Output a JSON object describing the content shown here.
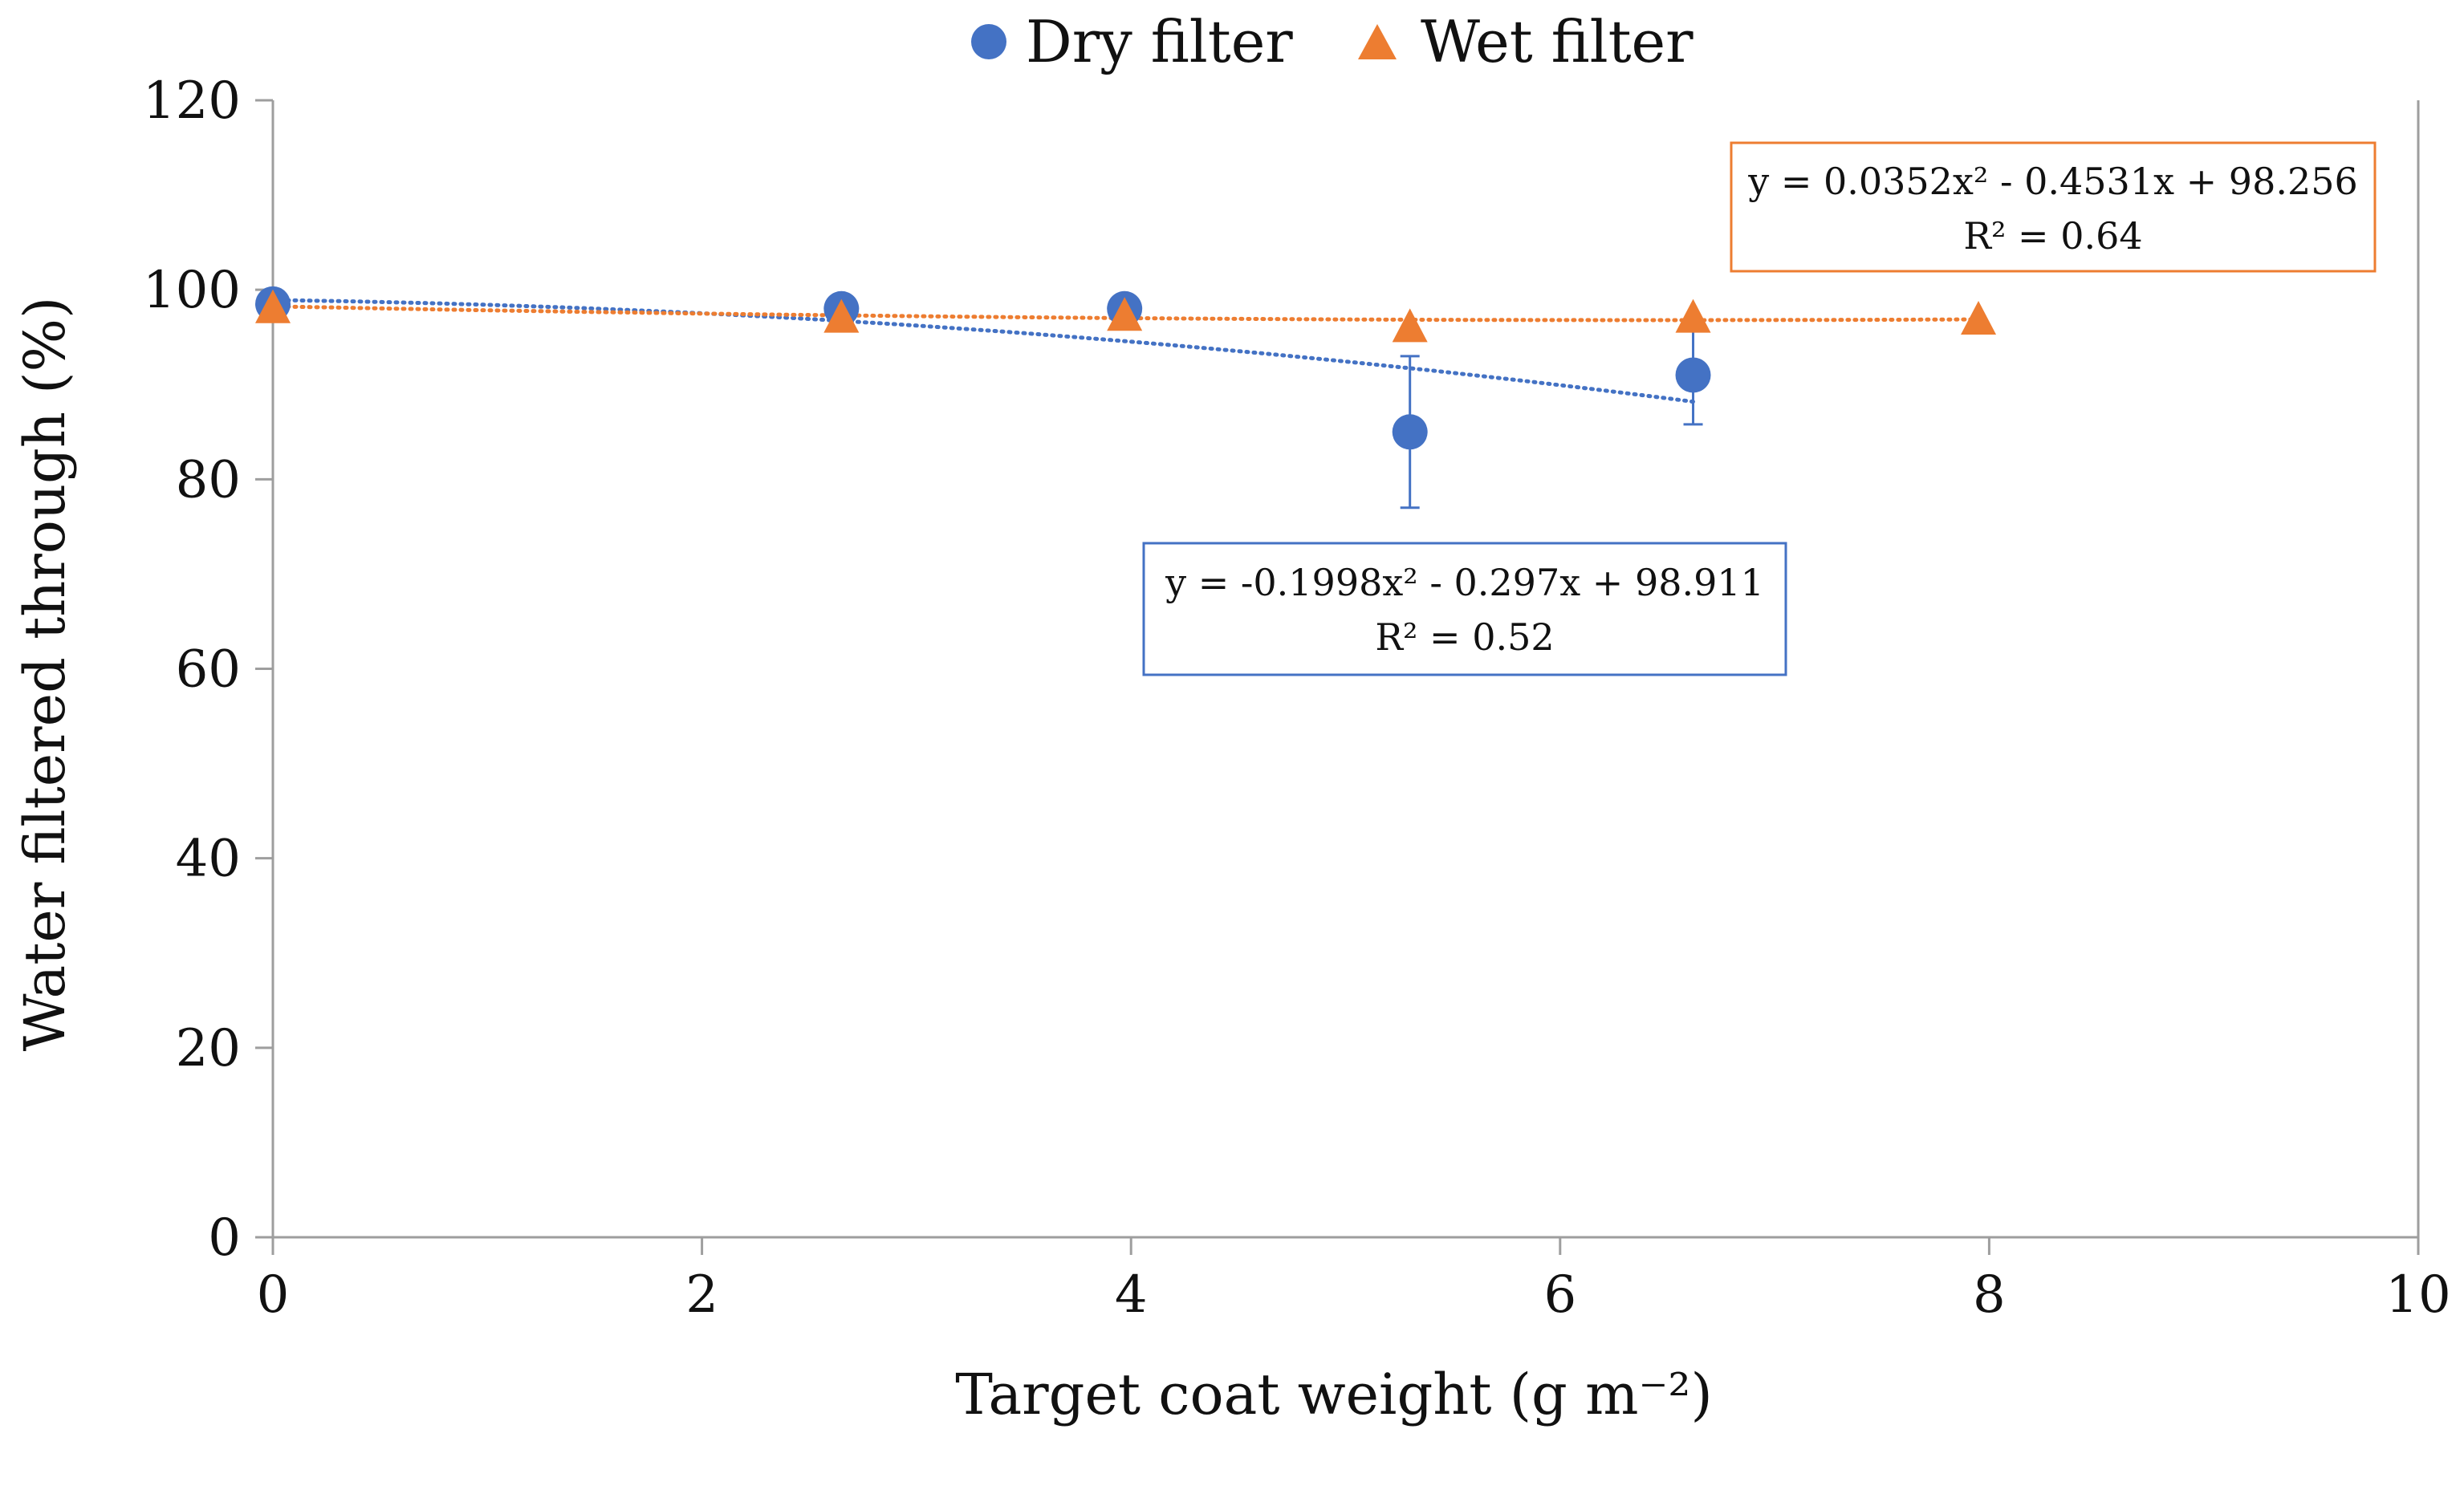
{
  "chart_data": {
    "type": "scatter",
    "title": "",
    "xlabel": "Target coat weight (g m⁻²)",
    "ylabel": "Water filtered through  (%)",
    "xlim": [
      0,
      10
    ],
    "ylim": [
      0,
      120
    ],
    "x_ticks": [
      0,
      2,
      4,
      6,
      8,
      10
    ],
    "y_ticks": [
      0,
      20,
      40,
      60,
      80,
      100,
      120
    ],
    "x_tick_labels": [
      "0",
      "2",
      "4",
      "6",
      "8",
      "10"
    ],
    "y_tick_labels": [
      "0",
      "20",
      "40",
      "60",
      "80",
      "100",
      "120"
    ],
    "grid": false,
    "legend_position": "top-center",
    "series": [
      {
        "name": "Dry filter",
        "marker": "circle",
        "color": "#4472C4",
        "x": [
          0,
          2.65,
          3.97,
          5.3,
          6.62
        ],
        "y": [
          98.5,
          98,
          98,
          85,
          91
        ],
        "error": [
          0,
          0,
          0,
          8,
          5.2
        ],
        "trendline": {
          "type": "polynomial-2",
          "coefficients": [
            -0.1998,
            -0.297,
            98.911
          ],
          "x_range": [
            0,
            6.62
          ],
          "equation": "y = -0.1998x² - 0.297x + 98.911",
          "r2": "R² = 0.52"
        }
      },
      {
        "name": "Wet filter",
        "marker": "triangle",
        "color": "#ED7D31",
        "x": [
          0,
          2.65,
          3.97,
          5.3,
          6.62,
          7.95
        ],
        "y": [
          98,
          97,
          97.2,
          96,
          97,
          96.8
        ],
        "error": [
          0,
          0,
          0,
          0,
          0,
          0
        ],
        "trendline": {
          "type": "polynomial-2",
          "coefficients": [
            0.0352,
            -0.4531,
            98.256
          ],
          "x_range": [
            0,
            7.95
          ],
          "equation": "y = 0.0352x² - 0.4531x + 98.256",
          "r2": "R² = 0.64"
        }
      }
    ]
  }
}
